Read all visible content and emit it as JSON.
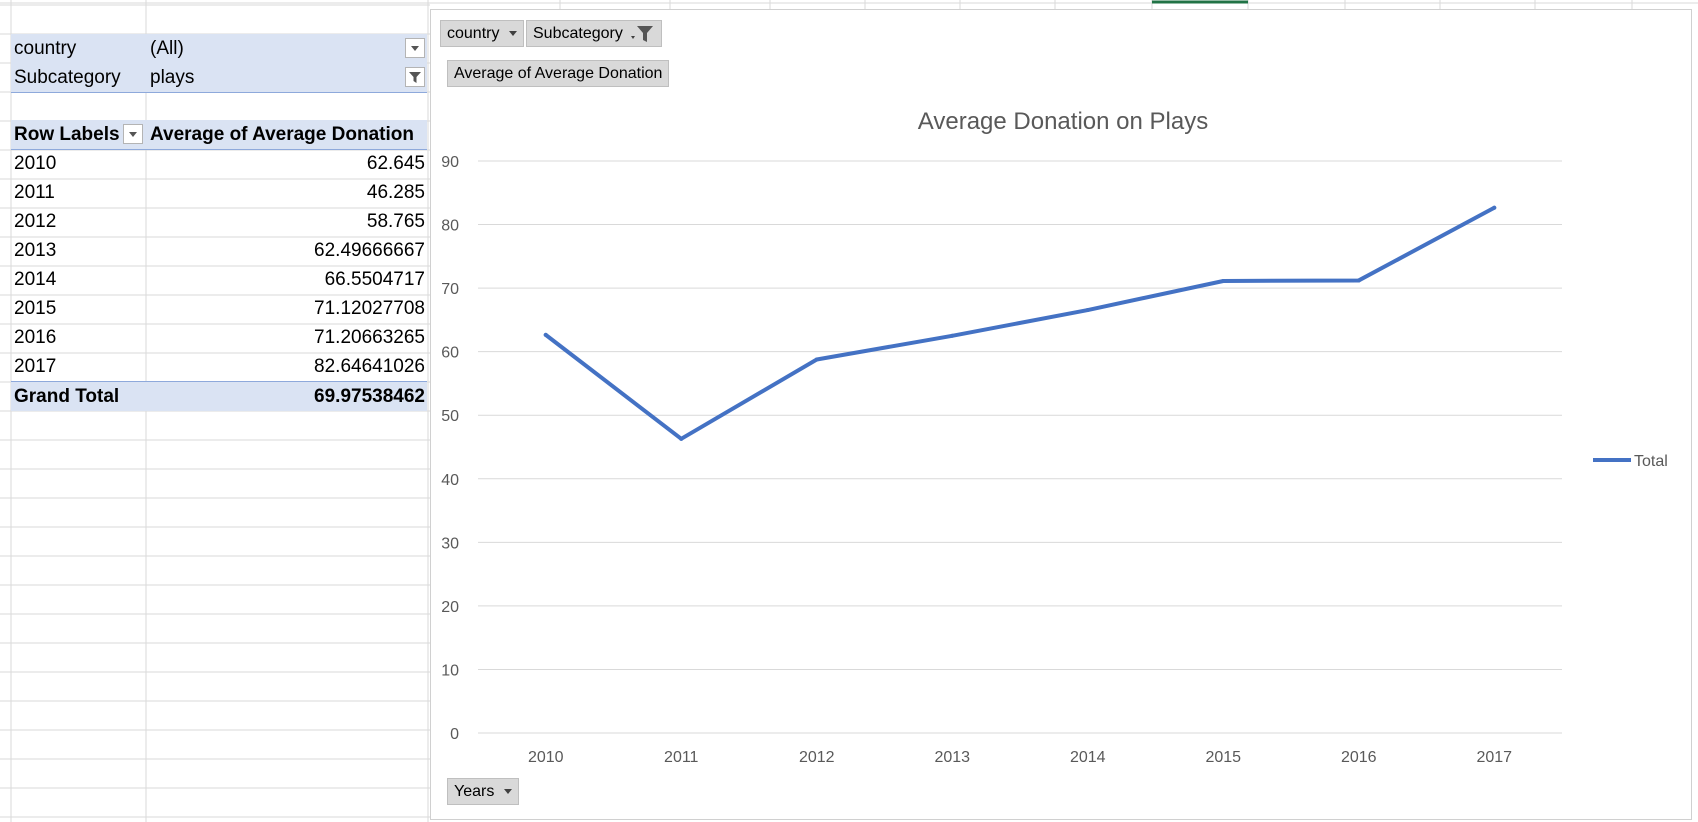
{
  "pivot": {
    "filters": [
      {
        "label": "country",
        "value": "(All)"
      },
      {
        "label": "Subcategory",
        "value": "plays"
      }
    ],
    "header": {
      "row_labels": "Row Labels",
      "value_header": "Average of Average Donation"
    },
    "rows": [
      {
        "label": "2010",
        "value": "62.645"
      },
      {
        "label": "2011",
        "value": "46.285"
      },
      {
        "label": "2012",
        "value": "58.765"
      },
      {
        "label": "2013",
        "value": "62.49666667"
      },
      {
        "label": "2014",
        "value": "66.5504717"
      },
      {
        "label": "2015",
        "value": "71.12027708"
      },
      {
        "label": "2016",
        "value": "71.20663265"
      },
      {
        "label": "2017",
        "value": "82.64641026"
      }
    ],
    "grand_total": {
      "label": "Grand Total",
      "value": "69.97538462"
    }
  },
  "chart_buttons": {
    "country": "country",
    "subcategory": "Subcategory",
    "values": "Average of Average Donation",
    "axis": "Years"
  },
  "colors": {
    "series": "#4472c4",
    "pivot_band": "#dae3f3",
    "grid": "#d9d9d9",
    "axis_text": "#595959"
  },
  "chart_data": {
    "type": "line",
    "title": "Average Donation on Plays",
    "x": [
      "2010",
      "2011",
      "2012",
      "2013",
      "2014",
      "2015",
      "2016",
      "2017"
    ],
    "series": [
      {
        "name": "Total",
        "values": [
          62.645,
          46.285,
          58.765,
          62.49666667,
          66.5504717,
          71.12027708,
          71.20663265,
          82.64641026
        ]
      }
    ],
    "ylim": [
      0,
      90
    ],
    "yticks": [
      0,
      10,
      20,
      30,
      40,
      50,
      60,
      70,
      80,
      90
    ],
    "grid": true,
    "legend": "right"
  }
}
